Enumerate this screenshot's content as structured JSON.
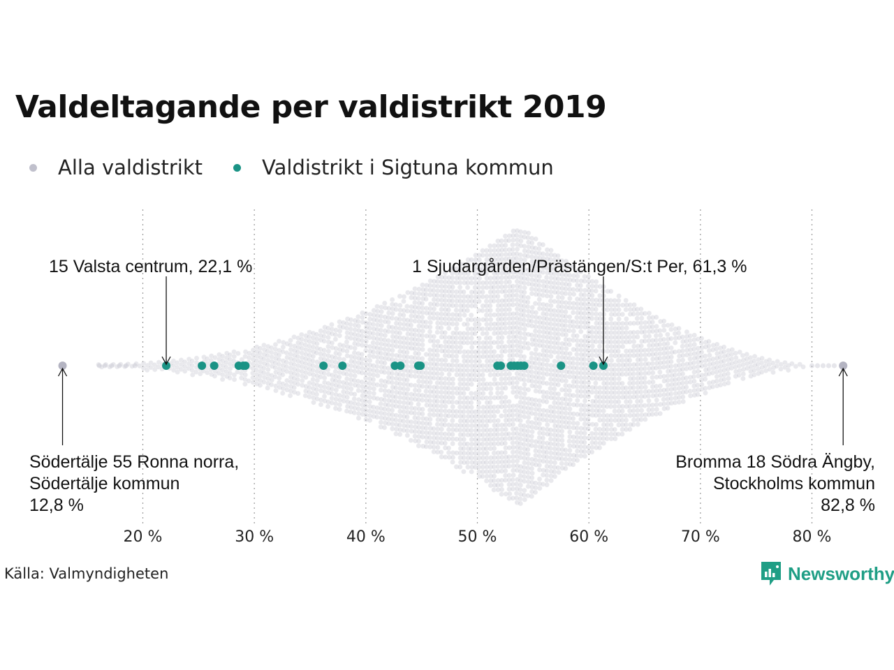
{
  "title": "Valdeltagande per valdistrikt 2019",
  "legend": [
    {
      "label": "Alla valdistrikt",
      "color": "#c0c0cc"
    },
    {
      "label": "Valdistrikt i Sigtuna kommun",
      "color": "#1a9385"
    }
  ],
  "source": "Källa: Valmyndigheten",
  "brand": {
    "name": "Newsworthy",
    "icon": "newsworthy-logo-icon",
    "color": "#1f9e85"
  },
  "chart_data": {
    "type": "scatter",
    "subtype": "beeswarm",
    "title": "Valdeltagande per valdistrikt 2019",
    "xlabel": "",
    "ylabel": "",
    "xlim": [
      12,
      83.5
    ],
    "x_ticks": [
      20,
      30,
      40,
      50,
      60,
      70,
      80
    ],
    "x_tick_labels": [
      "20 %",
      "30 %",
      "40 %",
      "50 %",
      "60 %",
      "70 %",
      "80 %"
    ],
    "grid": "vertical dotted",
    "legend_position": "top-left",
    "distribution_peak": 53.8,
    "series": [
      {
        "name": "Alla valdistrikt",
        "color": "#c0c0cc",
        "min": 12.8,
        "max": 82.8,
        "values": [
          12.8,
          82.8
        ]
      },
      {
        "name": "Valdistrikt i Sigtuna kommun",
        "color": "#1a9385",
        "values": [
          22.1,
          25.3,
          26.4,
          28.6,
          29.0,
          29.2,
          36.2,
          37.9,
          42.6,
          43.1,
          44.7,
          44.9,
          51.8,
          52.1,
          53.0,
          53.3,
          53.6,
          53.9,
          54.2,
          57.5,
          60.4,
          61.3
        ]
      }
    ],
    "annotations": [
      {
        "text": "15 Valsta centrum, 22,1 %",
        "x": 22.1,
        "position": "above"
      },
      {
        "text": "1 Sjudargården/Prästängen/S:t Per, 61,3 %",
        "x": 61.3,
        "position": "above"
      },
      {
        "lines": [
          "Södertälje 55 Ronna norra,",
          "Södertälje kommun",
          "12,8 %"
        ],
        "x": 12.8,
        "position": "below-left"
      },
      {
        "lines": [
          "Bromma 18 Södra Ängby,",
          "Stockholms kommun",
          "82,8 %"
        ],
        "x": 82.8,
        "position": "below-right"
      }
    ]
  }
}
